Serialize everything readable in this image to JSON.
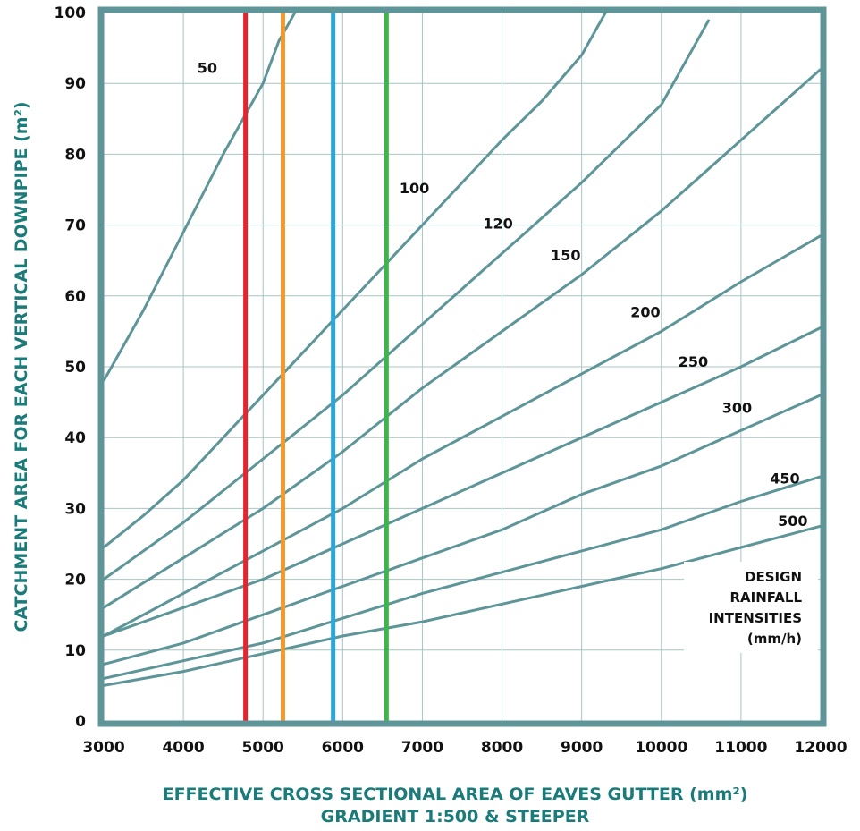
{
  "chart_data": {
    "type": "line",
    "title": "",
    "xlabel": "EFFECTIVE CROSS SECTIONAL AREA OF EAVES GUTTER (mm²)",
    "xlabel_line2": "GRADIENT 1:500 & STEEPER",
    "ylabel": "CATCHMENT AREA FOR EACH VERTICAL DOWNPIPE (m²)",
    "xlim": [
      3000,
      12000
    ],
    "ylim": [
      0,
      100
    ],
    "x_ticks": [
      "3000",
      "4000",
      "5000",
      "6000",
      "7000",
      "8000",
      "9000",
      "10000",
      "11000",
      "12000"
    ],
    "y_ticks": [
      "0",
      "10",
      "20",
      "30",
      "40",
      "50",
      "60",
      "70",
      "80",
      "90",
      "100"
    ],
    "grid": true,
    "legend_title": [
      "DESIGN",
      "RAINFALL",
      "INTENSITIES",
      "(mm/h)"
    ],
    "legend_placement": "bottom-right",
    "series": [
      {
        "name": "50",
        "points": [
          [
            3000,
            48
          ],
          [
            3500,
            58
          ],
          [
            4000,
            69
          ],
          [
            4500,
            80
          ],
          [
            4800,
            86
          ],
          [
            5000,
            90
          ],
          [
            5200,
            96
          ],
          [
            5400,
            100
          ]
        ]
      },
      {
        "name": "100",
        "points": [
          [
            3000,
            24.5
          ],
          [
            3500,
            29
          ],
          [
            4000,
            34
          ],
          [
            4500,
            40
          ],
          [
            5000,
            46
          ],
          [
            5500,
            52
          ],
          [
            6000,
            58
          ],
          [
            6500,
            64
          ],
          [
            7000,
            70
          ],
          [
            7500,
            76
          ],
          [
            8000,
            82
          ],
          [
            8500,
            87.5
          ],
          [
            9000,
            94
          ],
          [
            9300,
            100
          ]
        ]
      },
      {
        "name": "120",
        "points": [
          [
            3000,
            20
          ],
          [
            4000,
            28
          ],
          [
            5000,
            37
          ],
          [
            6000,
            46
          ],
          [
            7000,
            56
          ],
          [
            8000,
            66
          ],
          [
            9000,
            76
          ],
          [
            10000,
            87
          ],
          [
            10600,
            99
          ]
        ]
      },
      {
        "name": "150",
        "points": [
          [
            3000,
            16
          ],
          [
            4000,
            23
          ],
          [
            5000,
            30
          ],
          [
            6000,
            38
          ],
          [
            7000,
            47
          ],
          [
            8000,
            55
          ],
          [
            9000,
            63
          ],
          [
            10000,
            72
          ],
          [
            11000,
            82
          ],
          [
            12000,
            92
          ]
        ]
      },
      {
        "name": "200",
        "points": [
          [
            3000,
            12
          ],
          [
            4000,
            18
          ],
          [
            5000,
            24
          ],
          [
            6000,
            30
          ],
          [
            7000,
            37
          ],
          [
            8000,
            43
          ],
          [
            9000,
            49
          ],
          [
            10000,
            55
          ],
          [
            11000,
            62
          ],
          [
            12000,
            68.5
          ]
        ]
      },
      {
        "name": "250",
        "points": [
          [
            3000,
            12
          ],
          [
            4000,
            16
          ],
          [
            5000,
            20
          ],
          [
            6000,
            25
          ],
          [
            7000,
            30
          ],
          [
            8000,
            35
          ],
          [
            9000,
            40
          ],
          [
            10000,
            45
          ],
          [
            11000,
            50
          ],
          [
            12000,
            55.5
          ]
        ]
      },
      {
        "name": "300",
        "points": [
          [
            3000,
            8
          ],
          [
            4000,
            11
          ],
          [
            5000,
            15
          ],
          [
            6000,
            19
          ],
          [
            7000,
            23
          ],
          [
            8000,
            27
          ],
          [
            9000,
            32
          ],
          [
            10000,
            36
          ],
          [
            11000,
            41
          ],
          [
            12000,
            46
          ]
        ]
      },
      {
        "name": "450",
        "points": [
          [
            3000,
            6
          ],
          [
            4000,
            8.5
          ],
          [
            5000,
            11
          ],
          [
            6000,
            14.5
          ],
          [
            7000,
            18
          ],
          [
            8000,
            21
          ],
          [
            9000,
            24
          ],
          [
            10000,
            27
          ],
          [
            11000,
            31
          ],
          [
            12000,
            34.5
          ]
        ]
      },
      {
        "name": "500",
        "points": [
          [
            3000,
            5
          ],
          [
            4000,
            7
          ],
          [
            5000,
            9.5
          ],
          [
            6000,
            12
          ],
          [
            7000,
            14
          ],
          [
            8000,
            16.5
          ],
          [
            9000,
            19
          ],
          [
            10000,
            21.5
          ],
          [
            11000,
            24.5
          ],
          [
            12000,
            27.5
          ]
        ]
      }
    ],
    "series_labels": [
      {
        "text": "50",
        "x": 4300,
        "y": 91.5
      },
      {
        "text": "100",
        "x": 6900,
        "y": 74.5
      },
      {
        "text": "120",
        "x": 7950,
        "y": 69.5
      },
      {
        "text": "150",
        "x": 8800,
        "y": 65
      },
      {
        "text": "200",
        "x": 9800,
        "y": 57
      },
      {
        "text": "250",
        "x": 10400,
        "y": 50
      },
      {
        "text": "300",
        "x": 10950,
        "y": 43.5
      },
      {
        "text": "450",
        "x": 11550,
        "y": 33.5
      },
      {
        "text": "500",
        "x": 11650,
        "y": 27.5
      }
    ],
    "vertical_markers": [
      {
        "x": 4780,
        "color": "#e8232b"
      },
      {
        "x": 5250,
        "color": "#f29a2e"
      },
      {
        "x": 5880,
        "color": "#29a8df"
      },
      {
        "x": 6550,
        "color": "#3cb54a"
      }
    ],
    "colors": {
      "curve": "#5d9598",
      "frame": "#5d9598",
      "grid": "#a9c4c4",
      "axis_title": "#1b7a7a"
    }
  }
}
